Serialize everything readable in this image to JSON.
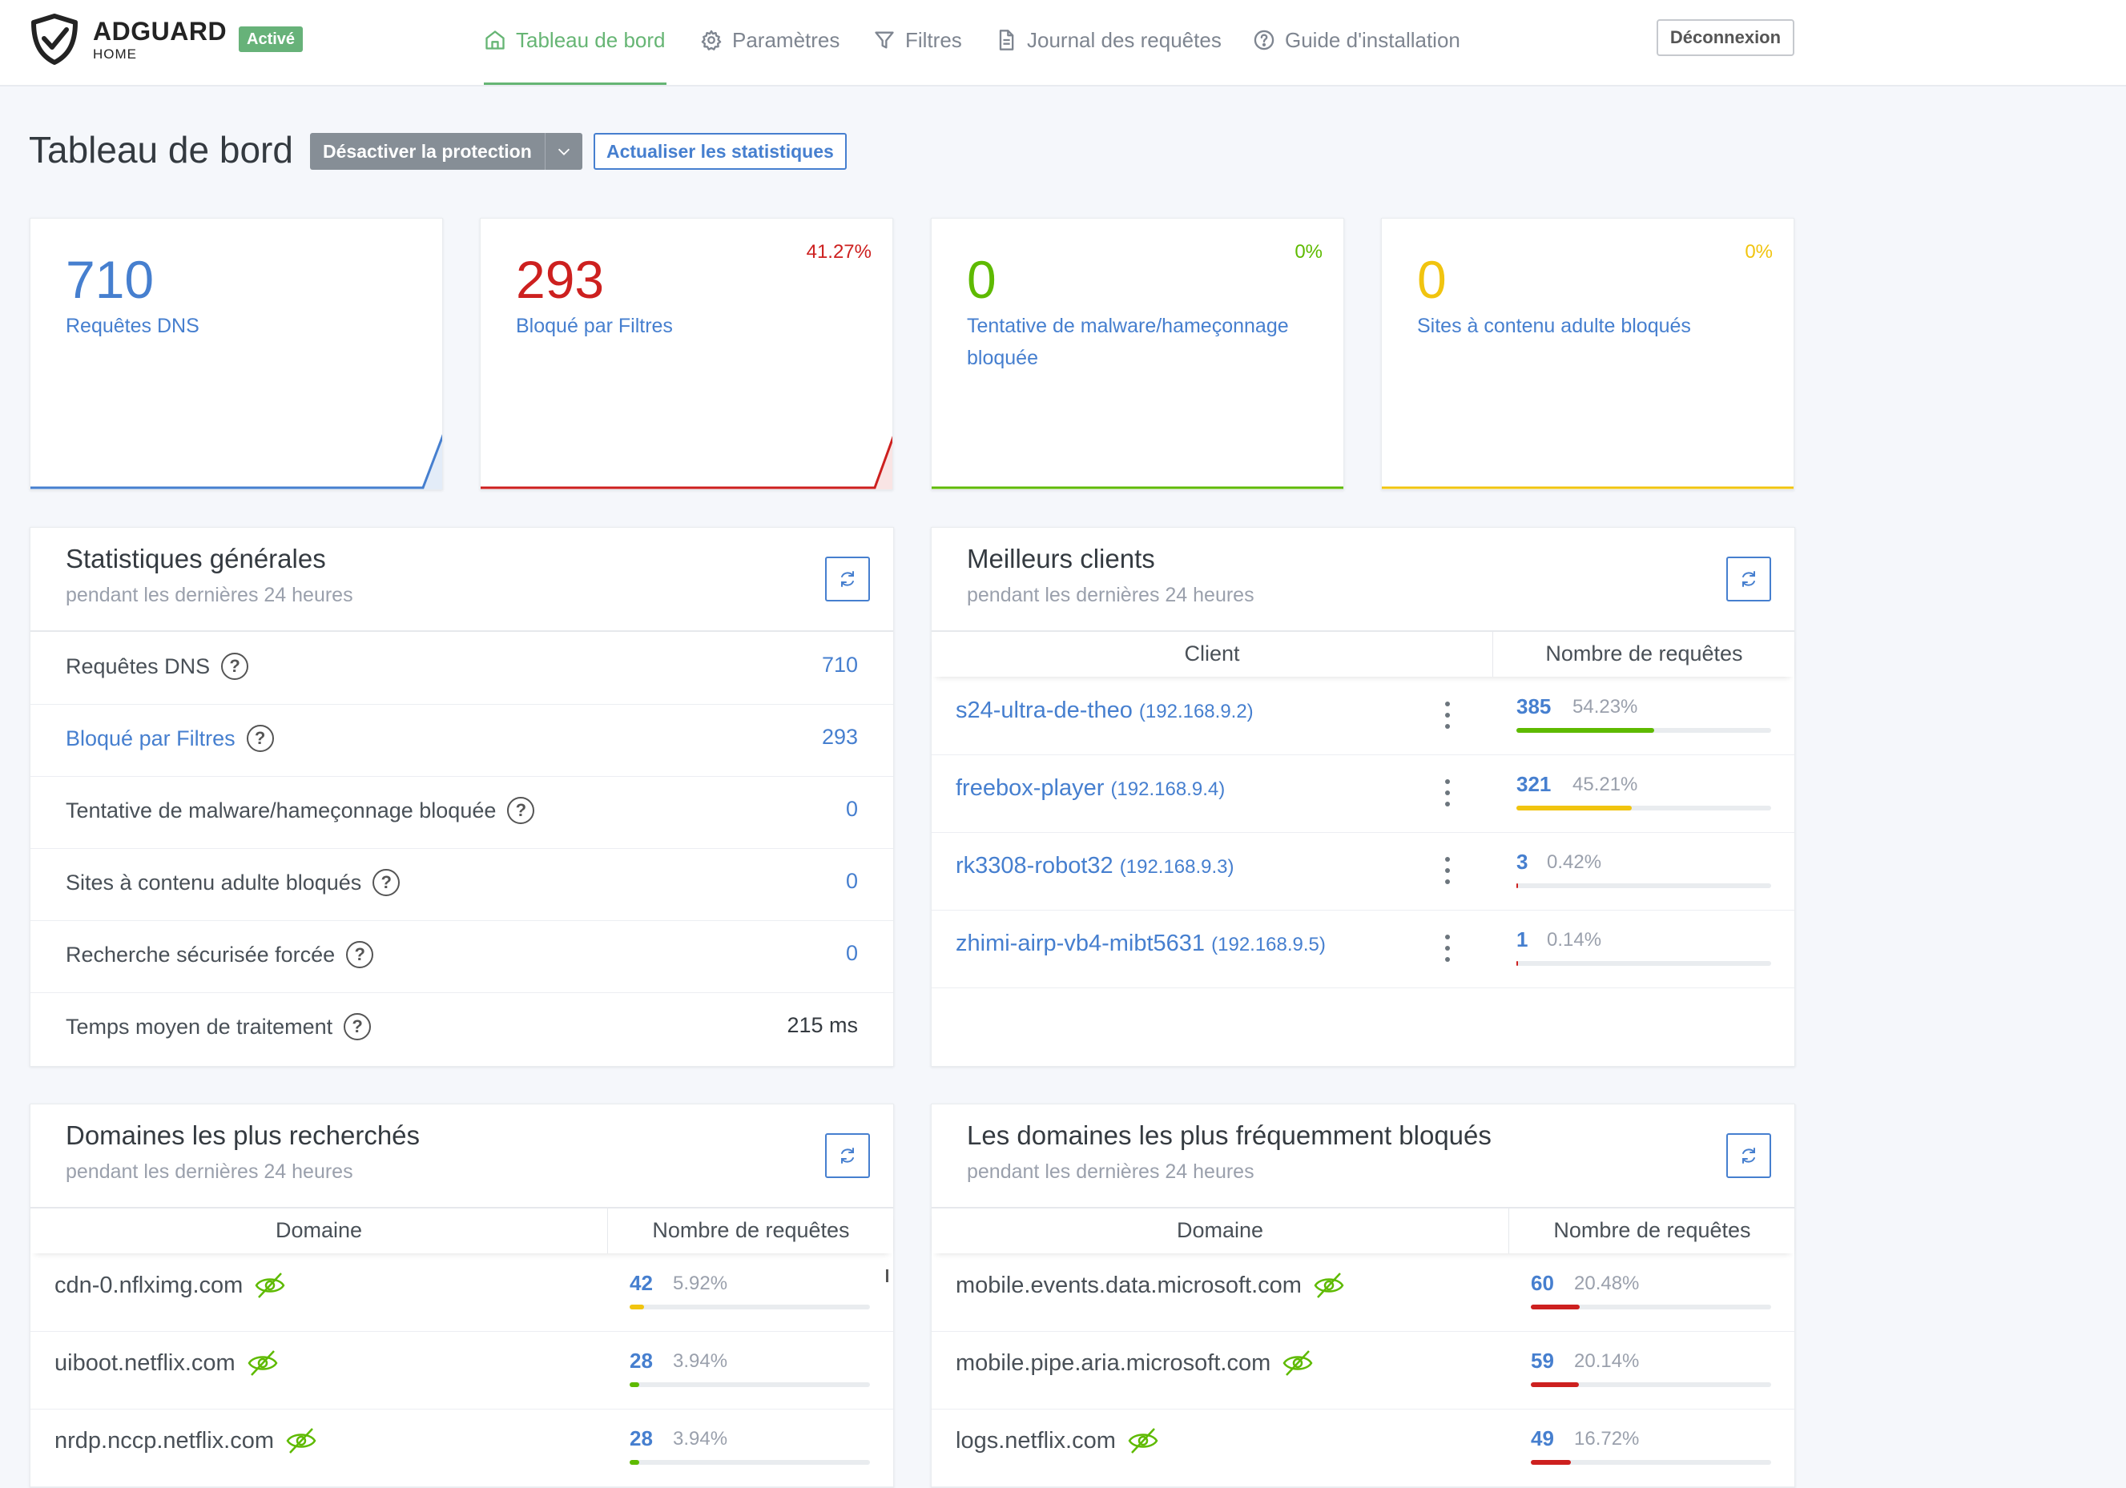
{
  "header": {
    "brand": "ADGUARD",
    "brand_sub": "HOME",
    "status_badge": "Activé",
    "nav": [
      {
        "label": "Tableau de bord",
        "icon": "home-icon"
      },
      {
        "label": "Paramètres",
        "icon": "gear-icon"
      },
      {
        "label": "Filtres",
        "icon": "filter-icon"
      },
      {
        "label": "Journal des requêtes",
        "icon": "document-icon"
      },
      {
        "label": "Guide d'installation",
        "icon": "help-icon"
      }
    ],
    "logout": "Déconnexion"
  },
  "page": {
    "title": "Tableau de bord",
    "toggle_protection": "Désactiver la protection",
    "refresh_stats": "Actualiser les statistiques"
  },
  "stat_cards": [
    {
      "value": "710",
      "label": "Requêtes DNS",
      "percent": "",
      "color": "#467fcf"
    },
    {
      "value": "293",
      "label": "Bloqué par Filtres",
      "percent": "41.27%",
      "color": "#cd201f"
    },
    {
      "value": "0",
      "label": "Tentative de malware/hameçonnage bloquée",
      "percent": "0%",
      "color": "#5eba00"
    },
    {
      "value": "0",
      "label": "Sites à contenu adulte bloqués",
      "percent": "0%",
      "color": "#f1c40f"
    }
  ],
  "general_stats": {
    "title": "Statistiques générales",
    "subtitle": "pendant les dernières 24 heures",
    "rows": [
      {
        "label": "Requêtes DNS",
        "value": "710"
      },
      {
        "label": "Bloqué par Filtres",
        "value": "293"
      },
      {
        "label": "Tentative de malware/hameçonnage bloquée",
        "value": "0"
      },
      {
        "label": "Sites à contenu adulte bloqués",
        "value": "0"
      },
      {
        "label": "Recherche sécurisée forcée",
        "value": "0"
      },
      {
        "label": "Temps moyen de traitement",
        "value": "215 ms"
      }
    ]
  },
  "top_clients": {
    "title": "Meilleurs clients",
    "subtitle": "pendant les dernières 24 heures",
    "col_client": "Client",
    "col_count": "Nombre de requêtes",
    "rows": [
      {
        "name": "s24-ultra-de-theo",
        "ip": "(192.168.9.2)",
        "count": "385",
        "percent": "54.23%",
        "fraction": 0.5423,
        "color": "#5eba00"
      },
      {
        "name": "freebox-player",
        "ip": "(192.168.9.4)",
        "count": "321",
        "percent": "45.21%",
        "fraction": 0.4521,
        "color": "#f1c40f"
      },
      {
        "name": "rk3308-robot32",
        "ip": "(192.168.9.3)",
        "count": "3",
        "percent": "0.42%",
        "fraction": 0.0042,
        "color": "#cd201f"
      },
      {
        "name": "zhimi-airp-vb4-mibt5631",
        "ip": "(192.168.9.5)",
        "count": "1",
        "percent": "0.14%",
        "fraction": 0.0014,
        "color": "#cd201f"
      }
    ]
  },
  "top_domains": {
    "title": "Domaines les plus recherchés",
    "subtitle": "pendant les dernières 24 heures",
    "col_domain": "Domaine",
    "col_count": "Nombre de requêtes",
    "rows": [
      {
        "domain": "cdn-0.nflximg.com",
        "count": "42",
        "percent": "5.92%",
        "fraction": 0.0592,
        "color": "#f1c40f"
      },
      {
        "domain": "uiboot.netflix.com",
        "count": "28",
        "percent": "3.94%",
        "fraction": 0.0394,
        "color": "#5eba00"
      },
      {
        "domain": "nrdp.nccp.netflix.com",
        "count": "28",
        "percent": "3.94%",
        "fraction": 0.0394,
        "color": "#5eba00"
      }
    ]
  },
  "top_blocked": {
    "title": "Les domaines les plus fréquemment bloqués",
    "subtitle": "pendant les dernières 24 heures",
    "col_domain": "Domaine",
    "col_count": "Nombre de requêtes",
    "rows": [
      {
        "domain": "mobile.events.data.microsoft.com",
        "count": "60",
        "percent": "20.48%",
        "fraction": 0.2048,
        "color": "#cd201f"
      },
      {
        "domain": "mobile.pipe.aria.microsoft.com",
        "count": "59",
        "percent": "20.14%",
        "fraction": 0.2014,
        "color": "#cd201f"
      },
      {
        "domain": "logs.netflix.com",
        "count": "49",
        "percent": "16.72%",
        "fraction": 0.1672,
        "color": "#cd201f"
      }
    ]
  }
}
